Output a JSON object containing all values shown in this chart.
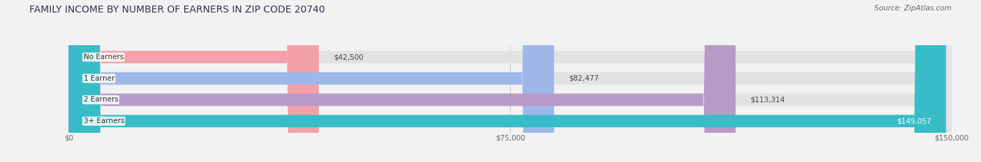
{
  "title": "FAMILY INCOME BY NUMBER OF EARNERS IN ZIP CODE 20740",
  "source": "Source: ZipAtlas.com",
  "categories": [
    "No Earners",
    "1 Earner",
    "2 Earners",
    "3+ Earners"
  ],
  "values": [
    42500,
    82477,
    113314,
    149057
  ],
  "bar_colors": [
    "#f4a0a8",
    "#9db8e8",
    "#b89ac8",
    "#38bcc8"
  ],
  "value_label_colors": [
    "#555555",
    "#555555",
    "#ffffff",
    "#ffffff"
  ],
  "x_max": 150000,
  "x_ticks": [
    0,
    75000,
    150000
  ],
  "x_tick_labels": [
    "$0",
    "$75,000",
    "$150,000"
  ],
  "background_color": "#f2f2f2",
  "bar_background_color": "#e2e2e2",
  "title_color": "#333355",
  "title_fontsize": 10,
  "source_fontsize": 7.5,
  "label_fontsize": 7.5,
  "tick_fontsize": 7.5,
  "bar_height": 0.58,
  "figwidth": 14.06,
  "figheight": 2.33,
  "dpi": 100
}
